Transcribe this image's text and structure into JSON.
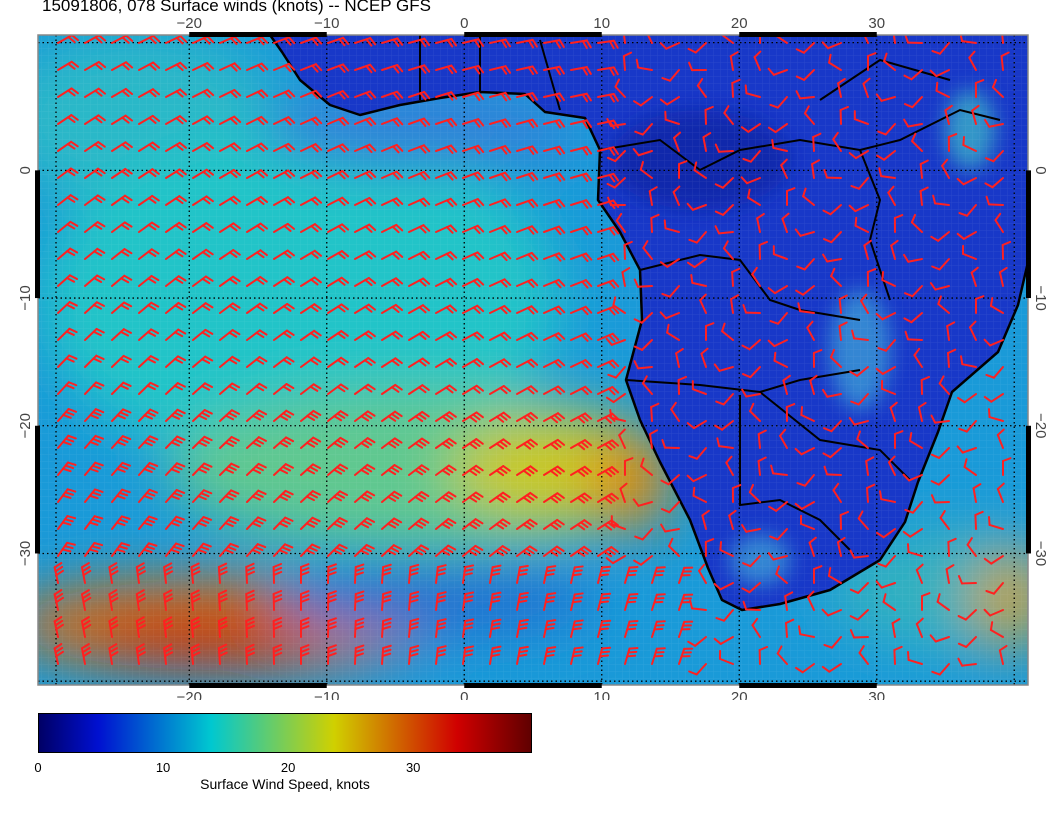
{
  "title": "15091806, 078 Surface winds (knots) -- NCEP GFS",
  "map": {
    "lon_range": [
      -31,
      41
    ],
    "lat_range": [
      -40.3,
      10.6
    ],
    "lon_ticks": [
      -20,
      -10,
      0,
      10,
      20,
      30
    ],
    "lat_ticks": [
      0,
      -10,
      -20,
      -30
    ],
    "lon_labels": [
      "−20",
      "−10",
      "0",
      "10",
      "20",
      "30"
    ],
    "lat_labels": [
      "0",
      "−10",
      "−20",
      "−30"
    ],
    "barb_color": "#ff2020",
    "coast_color": "#000000"
  },
  "colorbar": {
    "range": [
      0,
      39.5
    ],
    "ticks": [
      "0",
      "10",
      "20",
      "30"
    ],
    "tick_values": [
      0,
      10,
      20,
      30
    ],
    "label": "Surface Wind Speed, knots",
    "colors": [
      "#000066",
      "#0010d0",
      "#00c8d0",
      "#d0d000",
      "#d00000",
      "#600000"
    ]
  }
}
